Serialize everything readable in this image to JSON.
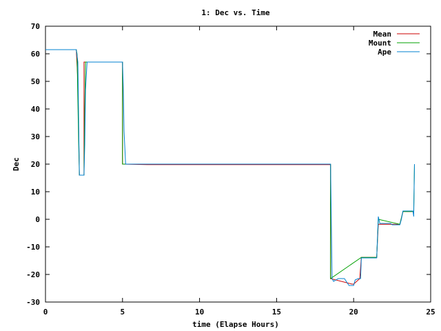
{
  "chart_data": {
    "type": "line",
    "title": "1: Dec vs. Time",
    "xlabel": "time (Elapse Hours)",
    "ylabel": "Dec",
    "xlim": [
      0,
      25
    ],
    "ylim": [
      -30,
      70
    ],
    "xticks": [
      "0",
      "5",
      "10",
      "15",
      "20",
      "25"
    ],
    "yticks": [
      "-30",
      "-20",
      "-10",
      "0",
      "10",
      "20",
      "30",
      "40",
      "50",
      "60",
      "70"
    ],
    "grid": false,
    "legend_position": "top-right",
    "series": [
      {
        "name": "Mean",
        "color": "#cc0000",
        "x": [
          0,
          2.0,
          2.1,
          2.2,
          2.2,
          2.5,
          2.5,
          5.0,
          5.0,
          6.6,
          16.4,
          18.5,
          18.5,
          19.9,
          20.0,
          20.4,
          20.5,
          21.5,
          21.6,
          22.3,
          23.0,
          23.2,
          23.9
        ],
        "y": [
          61.5,
          61.5,
          50,
          16,
          16,
          16,
          57,
          57,
          20,
          19.8,
          19.8,
          19.8,
          -21.5,
          -23.5,
          -23.5,
          -21.5,
          -13.8,
          -13.8,
          -1.8,
          -1.8,
          -1.8,
          2.8,
          2.8
        ]
      },
      {
        "name": "Mount",
        "color": "#00a000",
        "x": [
          0,
          2.0,
          2.05,
          2.15,
          2.2,
          2.5,
          2.55,
          2.6,
          5.0,
          5.0,
          18.5,
          18.5,
          20.5,
          21.5,
          21.6,
          23.0,
          23.2,
          23.9,
          23.95
        ],
        "y": [
          61.5,
          61.5,
          60,
          28,
          16,
          16,
          40,
          57,
          57,
          20,
          20,
          -21.5,
          -13.8,
          -13.8,
          0,
          -1.8,
          2.8,
          2.8,
          20
        ]
      },
      {
        "name": "Ape",
        "color": "#0080d0",
        "x": [
          0,
          2.0,
          2.1,
          2.2,
          2.3,
          2.4,
          2.5,
          2.55,
          2.6,
          2.7,
          5.0,
          5.05,
          5.1,
          5.2,
          18.5,
          18.55,
          18.6,
          18.7,
          19.0,
          19.4,
          19.7,
          20.0,
          20.1,
          20.3,
          20.45,
          20.5,
          20.6,
          21.4,
          21.5,
          21.6,
          21.7,
          22.4,
          22.5,
          23.0,
          23.1,
          23.2,
          23.85,
          23.9,
          23.95
        ],
        "y": [
          61.5,
          61.5,
          57,
          16,
          16,
          16,
          16,
          27,
          47,
          57,
          57,
          48,
          32,
          20,
          20,
          0,
          -21.5,
          -22.5,
          -21.5,
          -21.5,
          -24,
          -24,
          -22,
          -21.5,
          -21.5,
          -14,
          -14,
          -14,
          -14,
          1,
          -1.5,
          -1.5,
          -2,
          -2,
          0,
          3,
          3,
          1,
          20
        ]
      }
    ]
  }
}
